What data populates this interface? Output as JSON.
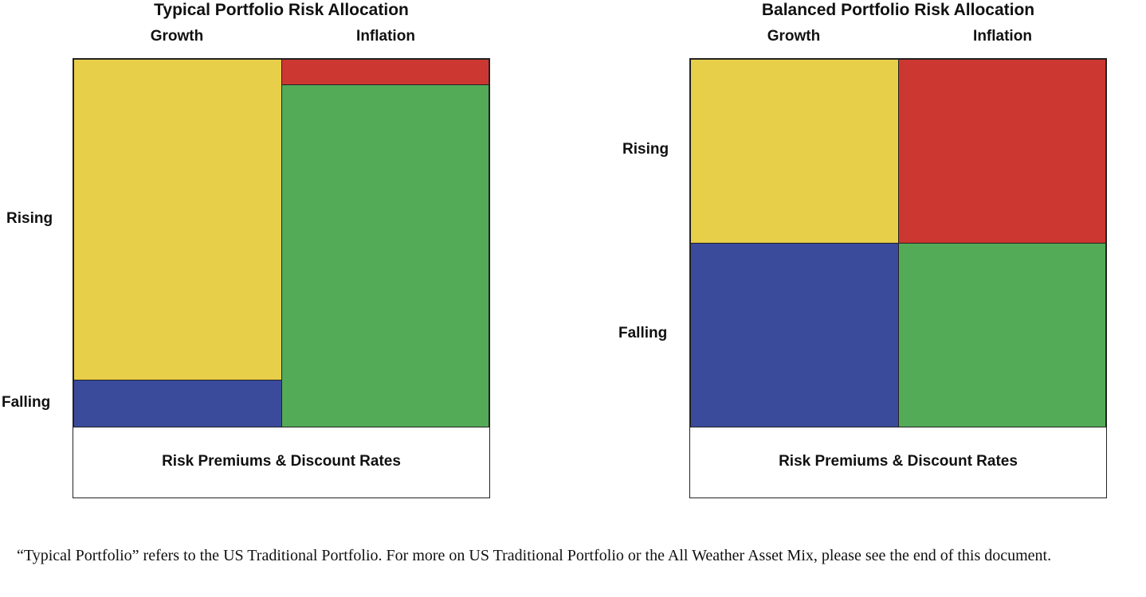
{
  "panels": [
    {
      "title": "Typical Portfolio Risk Allocation",
      "columns": [
        "Growth",
        "Inflation"
      ],
      "rows": [
        "Rising",
        "Falling"
      ],
      "bottom_label": "Risk Premiums & Discount Rates",
      "allocation": {
        "growth_rising_share": 0.87,
        "growth_falling_share": 0.13,
        "inflation_rising_share": 0.07,
        "inflation_falling_share": 0.93
      }
    },
    {
      "title": "Balanced Portfolio Risk Allocation",
      "columns": [
        "Growth",
        "Inflation"
      ],
      "rows": [
        "Rising",
        "Falling"
      ],
      "bottom_label": "Risk Premiums & Discount Rates",
      "allocation": {
        "growth_rising_share": 0.5,
        "growth_falling_share": 0.5,
        "inflation_rising_share": 0.5,
        "inflation_falling_share": 0.5
      }
    }
  ],
  "colors": {
    "growth_rising": "#e8cf4a",
    "growth_falling": "#3b4b9c",
    "inflation_rising": "#cd3731",
    "inflation_falling": "#53ab58"
  },
  "footnote": "“Typical Portfolio” refers to the US Traditional Portfolio. For more on US Traditional Portfolio or the All Weather Asset Mix, please see the end of this document."
}
